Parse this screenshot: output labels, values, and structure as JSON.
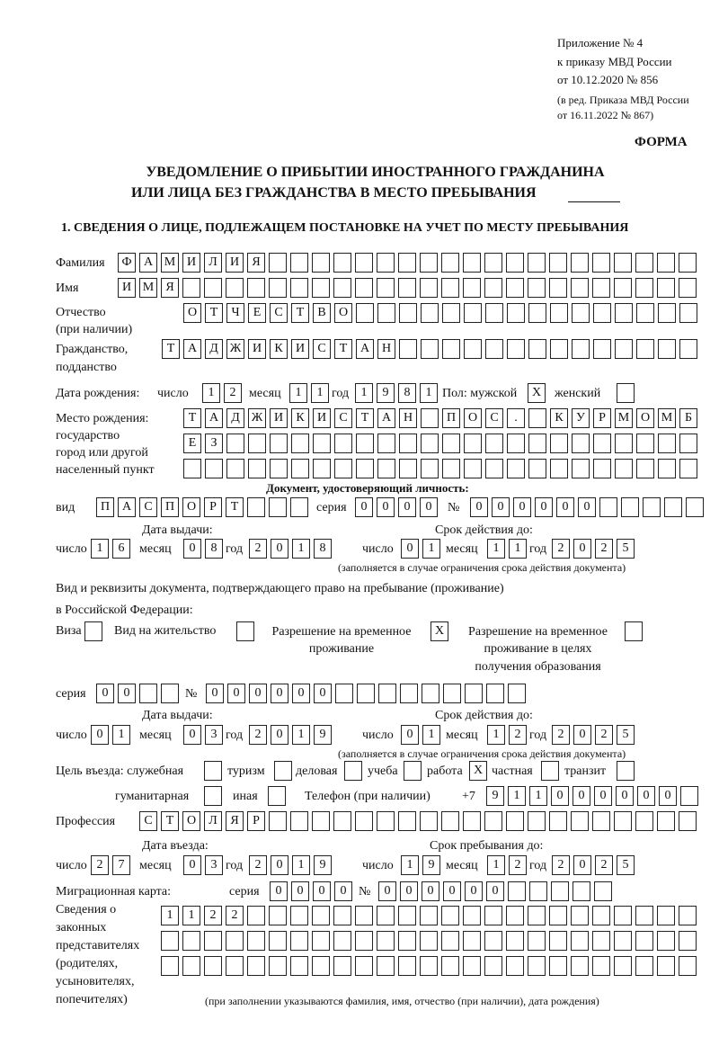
{
  "header": {
    "appendix": "Приложение № 4",
    "order": "к приказу МВД России",
    "order_date": "от 10.12.2020 № 856",
    "revision1": "(в ред. Приказа МВД России",
    "revision2": "от 16.11.2022 № 867)",
    "form_label": "ФОРМА",
    "title1": "УВЕДОМЛЕНИЕ О ПРИБЫТИИ ИНОСТРАННОГО ГРАЖДАНИНА",
    "title2": "ИЛИ ЛИЦА БЕЗ ГРАЖДАНСТВА В МЕСТО ПРЕБЫВАНИЯ",
    "section1": "1. СВЕДЕНИЯ О ЛИЦЕ, ПОДЛЕЖАЩЕМ ПОСТАНОВКЕ НА УЧЕТ ПО МЕСТУ ПРЕБЫВАНИЯ"
  },
  "labels": {
    "surname": "Фамилия",
    "name": "Имя",
    "patronymic1": "Отчество",
    "patronymic2": "(при наличии)",
    "citizenship1": "Гражданство,",
    "citizenship2": "подданство",
    "birth_date": "Дата рождения:",
    "day": "число",
    "month": "месяц",
    "year": "год",
    "sex": "Пол: мужской",
    "female": "женский",
    "birth_place1": "Место рождения:",
    "birth_place2": "государство",
    "birth_place3": "город или другой",
    "birth_place4": "населенный пункт",
    "id_doc": "Документ, удостоверяющий личность:",
    "kind": "вид",
    "series": "серия",
    "number": "№",
    "issue_date": "Дата выдачи:",
    "valid_until": "Срок действия до:",
    "validity_note": "(заполняется в случае ограничения срока действия документа)",
    "residence_doc1": "Вид и реквизиты документа, подтверждающего право на пребывание (проживание)",
    "residence_doc2": "в Российской Федерации:",
    "visa": "Виза",
    "residence_permit": "Вид на жительство",
    "temp_permit1": "Разрешение на временное",
    "temp_permit2": "проживание",
    "edu_permit1": "Разрешение на временное",
    "edu_permit2": "проживание в целях",
    "edu_permit3": "получения образования",
    "purpose": "Цель въезда: служебная",
    "tourism": "туризм",
    "business": "деловая",
    "study": "учеба",
    "work": "работа",
    "private": "частная",
    "transit": "транзит",
    "humanitarian": "гуманитарная",
    "other": "иная",
    "phone": "Телефон (при наличии)",
    "phone_prefix": "+7",
    "profession": "Профессия",
    "entry_date": "Дата въезда:",
    "stay_until": "Срок пребывания до:",
    "migration_card": "Миграционная карта:",
    "reps1": "Сведения о",
    "reps2": "законных",
    "reps3": "представителях",
    "reps4": "(родителях,",
    "reps5": "усыновителях,",
    "reps6": "попечителях)",
    "reps_note": "(при заполнении указываются фамилия, имя, отчество (при наличии), дата рождения)"
  },
  "person": {
    "surname": "ФАМИЛИЯ",
    "name": "ИМЯ",
    "patronymic": "ОТЧЕСТВО",
    "citizenship": "ТАДЖИКИСТАН",
    "birth_day": "12",
    "birth_month": "11",
    "birth_year": "1981",
    "male": "X",
    "female": "",
    "birth_place_1": "ТАДЖИКИСТАН ПОС. КУРМОМБ",
    "birth_place_2": "ЕЗ",
    "birth_place_3": ""
  },
  "id_document": {
    "kind": "ПАСПОРТ",
    "series": "0000",
    "number": "000000",
    "issue_day": "16",
    "issue_month": "08",
    "issue_year": "2018",
    "valid_day": "01",
    "valid_month": "11",
    "valid_year": "2025"
  },
  "residence_document": {
    "visa": "",
    "residence_permit": "",
    "temp_permit": "X",
    "edu_permit": "",
    "series": "00",
    "number": "000000",
    "issue_day": "01",
    "issue_month": "03",
    "issue_year": "2019",
    "valid_day": "01",
    "valid_month": "12",
    "valid_year": "2025"
  },
  "purpose": {
    "official": "",
    "tourism": "",
    "business": "",
    "study": "",
    "work": "X",
    "private": "",
    "transit": "",
    "humanitarian": "",
    "other": ""
  },
  "phone": "911000000",
  "profession": "СТОЛЯР",
  "entry": {
    "day": "27",
    "month": "03",
    "year": "2019",
    "stay_day": "19",
    "stay_month": "12",
    "stay_year": "2025"
  },
  "migration_card": {
    "series": "0000",
    "number": "000000"
  },
  "representatives": {
    "line1": "1122",
    "line2": "",
    "line3": ""
  }
}
